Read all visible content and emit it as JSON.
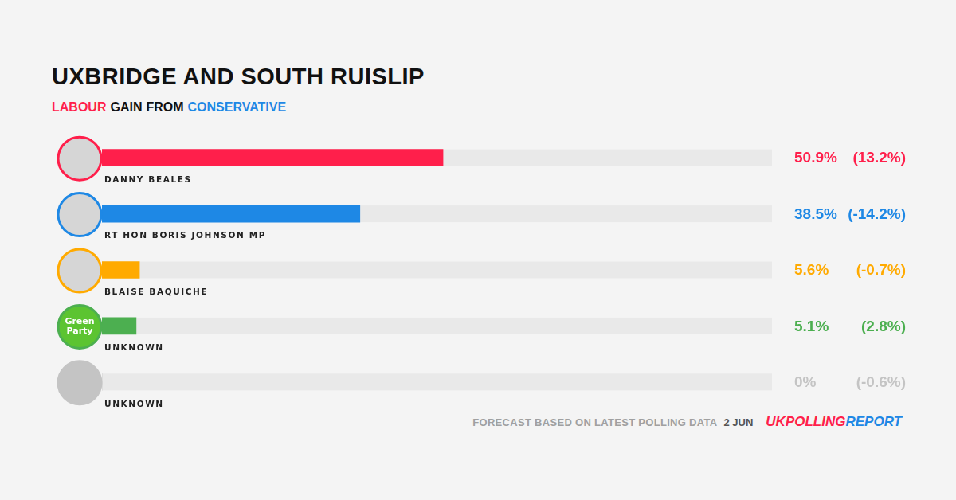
{
  "chart_data": {
    "type": "bar",
    "orientation": "horizontal",
    "title": "UXBRIDGE AND SOUTH RUISLIP",
    "subtitle": "LABOUR GAIN FROM CONSERVATIVE",
    "categories": [
      "DANNY BEALES",
      "RT HON BORIS JOHNSON MP",
      "BLAISE BAQUICHE",
      "UNKNOWN",
      "UNKNOWN"
    ],
    "values": [
      50.9,
      38.5,
      5.6,
      5.1,
      0
    ],
    "value_labels": [
      "50.9%",
      "38.5%",
      "5.6%",
      "5.1%",
      "0%"
    ],
    "changes": [
      13.2,
      -14.2,
      -0.7,
      2.8,
      -0.6
    ],
    "change_labels": [
      "(13.2%)",
      "(-14.2%)",
      "(-0.7%)",
      "(2.8%)",
      "(-0.6%)"
    ],
    "colors": [
      "#ff1f4b",
      "#1e88e5",
      "#ffaa00",
      "#4caf50",
      "#c4c4c4"
    ],
    "avatar_labels": [
      null,
      null,
      null,
      "Green Party",
      null
    ],
    "xlim": [
      0,
      100
    ],
    "tick_labels": false,
    "grid": false,
    "data_labels": true,
    "footer": "FORECAST BASED ON LATEST POLLING DATA",
    "date": "2 JUN",
    "brand": [
      "UKPOLLING",
      "REPORT"
    ]
  }
}
